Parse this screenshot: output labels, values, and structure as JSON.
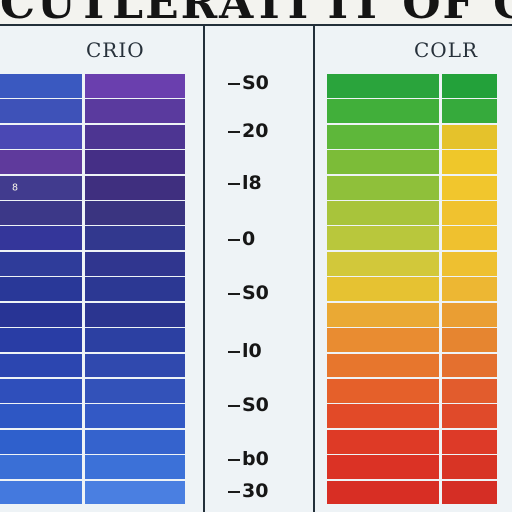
{
  "banner": {
    "title": "CUTLERATI IT OF COMPUTE"
  },
  "left_panel": {
    "header": "CRIO",
    "rows": [
      {
        "label": "",
        "colors": [
          "#3a59c0",
          "#6a3fae"
        ]
      },
      {
        "label": "",
        "colors": [
          "#3e52b8",
          "#5a3a9e"
        ]
      },
      {
        "label": "",
        "colors": [
          "#4a48b4",
          "#4d3592"
        ]
      },
      {
        "label": "",
        "colors": [
          "#5f3a9c",
          "#452f86"
        ]
      },
      {
        "label": "8",
        "colors": [
          "#413b8e",
          "#3f2f7f"
        ]
      },
      {
        "label": "",
        "colors": [
          "#3c3888",
          "#3a3480"
        ]
      },
      {
        "label": "",
        "colors": [
          "#34369a",
          "#32388e"
        ]
      },
      {
        "label": "",
        "colors": [
          "#2f3c9a",
          "#30368f"
        ]
      },
      {
        "label": "",
        "colors": [
          "#293898",
          "#2c3893"
        ]
      },
      {
        "label": "",
        "colors": [
          "#283495",
          "#2b3590"
        ]
      },
      {
        "label": "",
        "colors": [
          "#293da5",
          "#2c40a2"
        ]
      },
      {
        "label": "",
        "colors": [
          "#2c46b0",
          "#3049ae"
        ]
      },
      {
        "label": "",
        "colors": [
          "#2f4fbb",
          "#3352b9"
        ]
      },
      {
        "label": "",
        "colors": [
          "#2e57c4",
          "#3359c5"
        ]
      },
      {
        "label": "",
        "colors": [
          "#2f60cc",
          "#3563cd"
        ]
      },
      {
        "label": "",
        "colors": [
          "#3a6fd6",
          "#3c71d8"
        ]
      },
      {
        "label": "",
        "colors": [
          "#4479de",
          "#4a7fe1"
        ]
      }
    ]
  },
  "scale": {
    "marks": [
      "S0",
      "20",
      "l8",
      "0",
      "S0",
      "l0",
      "S0",
      "b0",
      "30"
    ]
  },
  "right_panel": {
    "header": "COLR",
    "rows": [
      {
        "label": "",
        "colors": [
          "#2aa43c",
          "#23a13a"
        ]
      },
      {
        "label": "",
        "colors": [
          "#41af3a",
          "#36aa3c"
        ]
      },
      {
        "label": "",
        "colors": [
          "#5eb73a",
          "#e5c22b"
        ]
      },
      {
        "label": "",
        "colors": [
          "#7cbc38",
          "#efc72a"
        ]
      },
      {
        "label": "",
        "colors": [
          "#8fc03a",
          "#f1c62d"
        ]
      },
      {
        "label": "",
        "colors": [
          "#a8c43b",
          "#f0c22f"
        ]
      },
      {
        "label": "",
        "colors": [
          "#b9c73c",
          "#efc12f"
        ]
      },
      {
        "label": "",
        "colors": [
          "#d2c83a",
          "#eec030"
        ]
      },
      {
        "label": "",
        "colors": [
          "#e6c232",
          "#edb733"
        ]
      },
      {
        "label": "",
        "colors": [
          "#eaa934",
          "#ea9e33"
        ]
      },
      {
        "label": "",
        "colors": [
          "#e98c31",
          "#e68530"
        ]
      },
      {
        "label": "",
        "colors": [
          "#e7762d",
          "#e4702f"
        ]
      },
      {
        "label": "",
        "colors": [
          "#e5602a",
          "#e25c2d"
        ]
      },
      {
        "label": "",
        "colors": [
          "#e24a28",
          "#e04a2a"
        ]
      },
      {
        "label": "",
        "colors": [
          "#de3a26",
          "#dd3a28"
        ]
      },
      {
        "label": "",
        "colors": [
          "#db3225",
          "#d83425"
        ]
      },
      {
        "label": "",
        "colors": [
          "#d82e24",
          "#d52e25"
        ]
      }
    ]
  }
}
